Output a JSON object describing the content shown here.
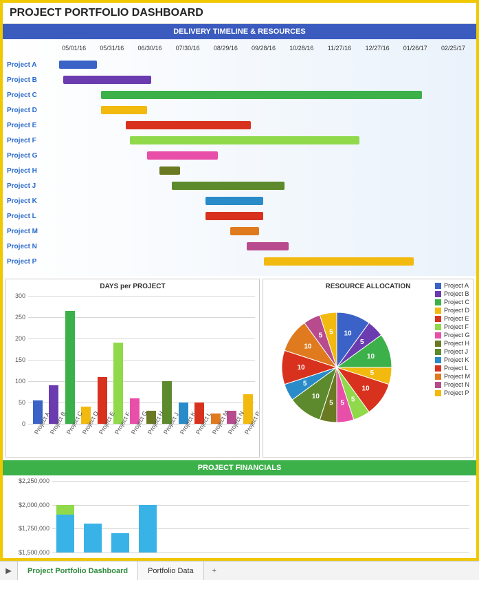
{
  "title": "PROJECT PORTFOLIO DASHBOARD",
  "timeline": {
    "header": "DELIVERY TIMELINE & RESOURCES",
    "header_bg": "#3b5bbf",
    "date_labels": [
      "05/01/16",
      "05/31/16",
      "06/30/16",
      "07/30/16",
      "08/29/16",
      "09/28/16",
      "10/28/16",
      "11/27/16",
      "12/27/16",
      "01/26/17",
      "02/25/17"
    ],
    "projects": [
      {
        "label": "Project A",
        "start": 1,
        "dur": 9,
        "color": "#3b62c6"
      },
      {
        "label": "Project B",
        "start": 2,
        "dur": 21,
        "color": "#6b3bb0"
      },
      {
        "label": "Project C",
        "start": 11,
        "dur": 77,
        "color": "#3cb14a"
      },
      {
        "label": "Project D",
        "start": 11,
        "dur": 11,
        "color": "#f2b90f"
      },
      {
        "label": "Project E",
        "start": 17,
        "dur": 30,
        "color": "#d8321e"
      },
      {
        "label": "Project F",
        "start": 18,
        "dur": 55,
        "color": "#8fd94a"
      },
      {
        "label": "Project G",
        "start": 22,
        "dur": 17,
        "color": "#e84fa8"
      },
      {
        "label": "Project H",
        "start": 25,
        "dur": 5,
        "color": "#6a7a22"
      },
      {
        "label": "Project J",
        "start": 28,
        "dur": 27,
        "color": "#5c8a2c"
      },
      {
        "label": "Project K",
        "start": 36,
        "dur": 14,
        "color": "#2a8bc9"
      },
      {
        "label": "Project L",
        "start": 36,
        "dur": 14,
        "color": "#d8321e"
      },
      {
        "label": "Project M",
        "start": 42,
        "dur": 7,
        "color": "#e07a1e"
      },
      {
        "label": "Project N",
        "start": 46,
        "dur": 10,
        "color": "#b84a8e"
      },
      {
        "label": "Project P",
        "start": 50,
        "dur": 36,
        "color": "#f2b90f"
      }
    ],
    "label_color": "#2a6acb",
    "label_fontsize": 10
  },
  "bar_chart": {
    "title": "DAYS per PROJECT",
    "ymax": 300,
    "ytick_step": 50,
    "grid_color": "#d8d8d8",
    "categories": [
      "Project A",
      "Project B",
      "Project C",
      "Project D",
      "Project E",
      "Project F",
      "Project G",
      "Project H",
      "Project J",
      "Project K",
      "Project L",
      "Project M",
      "Project N",
      "Project P"
    ],
    "values": [
      55,
      90,
      265,
      40,
      110,
      190,
      60,
      30,
      100,
      50,
      50,
      25,
      30,
      70
    ],
    "colors": [
      "#3b62c6",
      "#6b3bb0",
      "#3cb14a",
      "#f2b90f",
      "#d8321e",
      "#8fd94a",
      "#e84fa8",
      "#6a7a22",
      "#5c8a2c",
      "#2a8bc9",
      "#d8321e",
      "#e07a1e",
      "#b84a8e",
      "#f2b90f"
    ]
  },
  "pie_chart": {
    "title": "RESOURCE ALLOCATION",
    "slices": [
      {
        "label": "Project A",
        "value": 10,
        "color": "#3b62c6"
      },
      {
        "label": "Project B",
        "value": 5,
        "color": "#6b3bb0"
      },
      {
        "label": "Project C",
        "value": 10,
        "color": "#3cb14a"
      },
      {
        "label": "Project D",
        "value": 5,
        "color": "#f2b90f"
      },
      {
        "label": "Project E",
        "value": 10,
        "color": "#d8321e"
      },
      {
        "label": "Project F",
        "value": 5,
        "color": "#8fd94a"
      },
      {
        "label": "Project G",
        "value": 5,
        "color": "#e84fa8"
      },
      {
        "label": "Project H",
        "value": 5,
        "color": "#6a7a22"
      },
      {
        "label": "Project J",
        "value": 10,
        "color": "#5c8a2c"
      },
      {
        "label": "Project K",
        "value": 5,
        "color": "#2a8bc9"
      },
      {
        "label": "Project L",
        "value": 10,
        "color": "#d8321e"
      },
      {
        "label": "Project M",
        "value": 10,
        "color": "#e07a1e"
      },
      {
        "label": "Project N",
        "value": 5,
        "color": "#b84a8e"
      },
      {
        "label": "Project P",
        "value": 5,
        "color": "#f2b90f"
      }
    ],
    "value_label_color": "#ffffff",
    "value_label_fontsize": 10
  },
  "financials": {
    "header": "PROJECT FINANCIALS",
    "header_bg": "#3cb14a",
    "ymin": 1500000,
    "ymax": 2250000,
    "ytick_step": 250000,
    "y_labels": [
      "$2,250,000",
      "$2,000,000",
      "$1,750,000",
      "$1,500,000"
    ],
    "grid_color": "#d8d8d8",
    "bars": [
      {
        "x": 0,
        "segments": [
          {
            "v": 1900000,
            "color": "#39b3e7"
          },
          {
            "v": 2000000,
            "color": "#8fd94a"
          }
        ]
      },
      {
        "x": 1,
        "segments": [
          {
            "v": 1800000,
            "color": "#39b3e7"
          }
        ]
      },
      {
        "x": 2,
        "segments": [
          {
            "v": 1700000,
            "color": "#39b3e7"
          }
        ]
      },
      {
        "x": 3,
        "segments": [
          {
            "v": 2000000,
            "color": "#39b3e7"
          }
        ]
      }
    ]
  },
  "tabs": {
    "active": "Project Portfolio Dashboard",
    "items": [
      "Project Portfolio Dashboard",
      "Portfolio Data"
    ],
    "add_label": "+"
  }
}
